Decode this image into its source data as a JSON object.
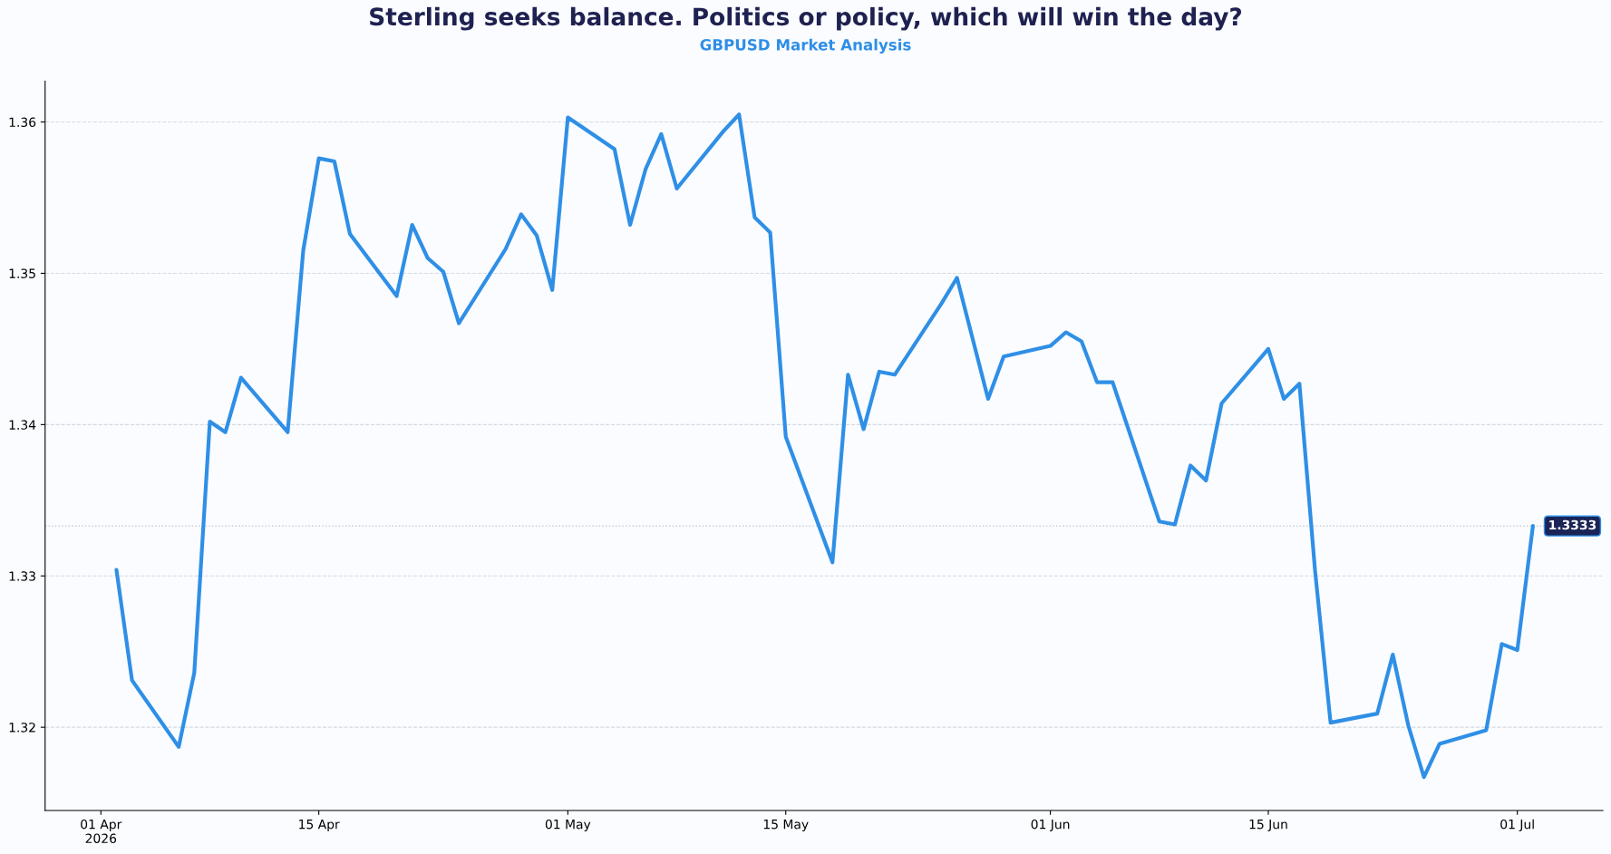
{
  "chart_data": {
    "type": "line",
    "title": "Sterling seeks balance. Politics or policy, which will win the day?",
    "subtitle": "GBPUSD Market Analysis",
    "x": [
      "2026-04-02",
      "2026-04-03",
      "2026-04-06",
      "2026-04-07",
      "2026-04-08",
      "2026-04-09",
      "2026-04-10",
      "2026-04-13",
      "2026-04-14",
      "2026-04-15",
      "2026-04-16",
      "2026-04-17",
      "2026-04-20",
      "2026-04-21",
      "2026-04-22",
      "2026-04-23",
      "2026-04-24",
      "2026-04-27",
      "2026-04-28",
      "2026-04-29",
      "2026-04-30",
      "2026-05-01",
      "2026-05-04",
      "2026-05-05",
      "2026-05-06",
      "2026-05-07",
      "2026-05-08",
      "2026-05-11",
      "2026-05-12",
      "2026-05-13",
      "2026-05-14",
      "2026-05-15",
      "2026-05-18",
      "2026-05-19",
      "2026-05-20",
      "2026-05-21",
      "2026-05-22",
      "2026-05-25",
      "2026-05-26",
      "2026-05-28",
      "2026-05-29",
      "2026-06-01",
      "2026-06-02",
      "2026-06-03",
      "2026-06-04",
      "2026-06-05",
      "2026-06-08",
      "2026-06-09",
      "2026-06-10",
      "2026-06-11",
      "2026-06-12",
      "2026-06-15",
      "2026-06-16",
      "2026-06-17",
      "2026-06-18",
      "2026-06-19",
      "2026-06-22",
      "2026-06-23",
      "2026-06-24",
      "2026-06-25",
      "2026-06-26",
      "2026-06-29",
      "2026-06-30",
      "2026-07-01",
      "2026-07-02"
    ],
    "series": [
      {
        "color": "#2f8fe6",
        "values": [
          1.3304,
          1.3231,
          1.3187,
          1.3236,
          1.3402,
          1.3395,
          1.3431,
          1.3395,
          1.3515,
          1.3576,
          1.3574,
          1.3526,
          1.3485,
          1.3532,
          1.351,
          1.3501,
          1.3467,
          1.3516,
          1.3539,
          1.3525,
          1.3489,
          1.3603,
          1.3582,
          1.3532,
          1.3569,
          1.3592,
          1.3556,
          1.3594,
          1.3605,
          1.3537,
          1.3527,
          1.3392,
          1.3309,
          1.3433,
          1.3397,
          1.3435,
          1.3433,
          1.348,
          1.3497,
          1.3417,
          1.3445,
          1.3452,
          1.3461,
          1.3455,
          1.3428,
          1.3428,
          1.3336,
          1.3334,
          1.3373,
          1.3363,
          1.3414,
          1.345,
          1.3417,
          1.3427,
          1.3304,
          1.3203,
          1.3209,
          1.3248,
          1.3201,
          1.3167,
          1.3189,
          1.3198,
          1.3255,
          1.3251,
          1.3333
        ]
      }
    ],
    "xlim": [
      "2026-03-28T10:00",
      "2026-07-06T12:00"
    ],
    "xticks": [
      {
        "value": "2026-04-01",
        "label": "01 Apr\n2026"
      },
      {
        "value": "2026-04-15",
        "label": "15 Apr"
      },
      {
        "value": "2026-05-01",
        "label": "01 May"
      },
      {
        "value": "2026-05-15",
        "label": "15 May"
      },
      {
        "value": "2026-06-01",
        "label": "01 Jun"
      },
      {
        "value": "2026-06-15",
        "label": "15 Jun"
      },
      {
        "value": "2026-07-01",
        "label": "01 Jul"
      }
    ],
    "ylim": [
      1.3145,
      1.3627
    ],
    "yticks": [
      1.32,
      1.33,
      1.34,
      1.35,
      1.36
    ],
    "ref_lines": [
      {
        "axis": "y",
        "value": 1.3333,
        "label": "1.3333",
        "color": "#c8ccd4",
        "line_style": "dotted"
      }
    ],
    "grid": "y",
    "line_style": "solid",
    "marker": "none"
  }
}
